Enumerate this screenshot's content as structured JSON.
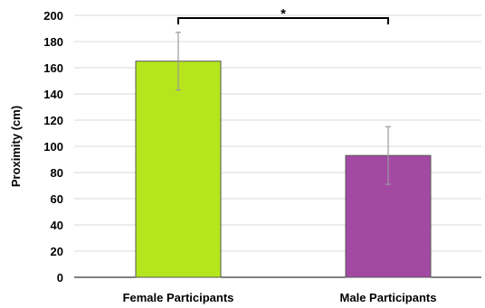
{
  "chart_data": {
    "type": "bar",
    "categories": [
      "Female Participants",
      "Male Participants"
    ],
    "values": [
      165,
      93
    ],
    "errors": [
      22,
      22
    ],
    "colors": [
      "#b5e61d",
      "#a349a4"
    ],
    "title": "",
    "xlabel": "",
    "ylabel": "Proximity (cm)",
    "ylim": [
      0,
      200
    ],
    "yticks": [
      0,
      20,
      40,
      60,
      80,
      100,
      120,
      140,
      160,
      180,
      200
    ],
    "grid": true,
    "significance": {
      "between": [
        0,
        1
      ],
      "label": "*"
    }
  }
}
